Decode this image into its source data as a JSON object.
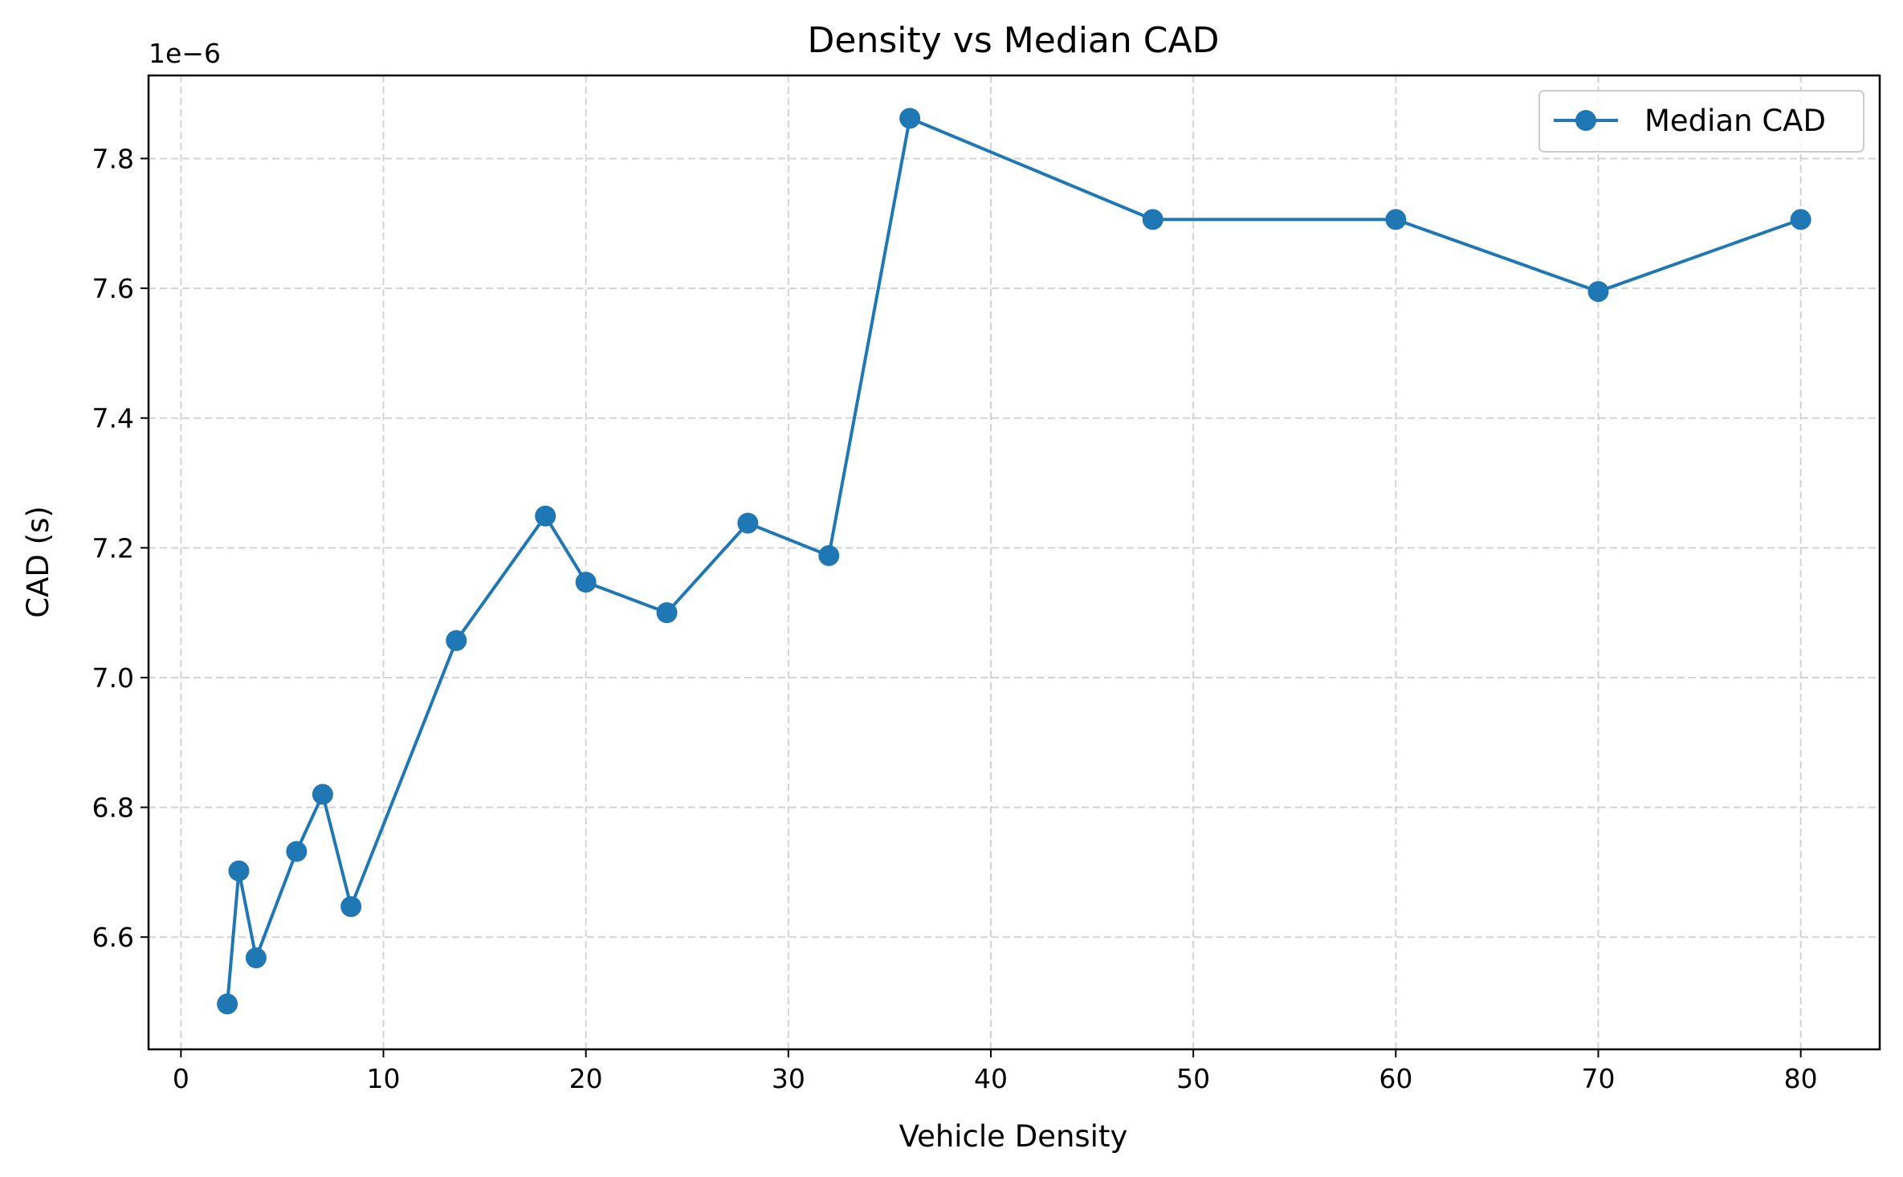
{
  "chart_data": {
    "type": "line",
    "title": "Density vs Median CAD",
    "xlabel": "Vehicle Density",
    "ylabel": "CAD (s)",
    "y_offset_label": "1e−6",
    "xlim": [
      -1.6,
      83.9
    ],
    "ylim": [
      6.427,
      7.928
    ],
    "x_ticks": [
      0,
      10,
      20,
      30,
      40,
      50,
      60,
      70,
      80
    ],
    "x_tick_labels": [
      "0",
      "10",
      "20",
      "30",
      "40",
      "50",
      "60",
      "70",
      "80"
    ],
    "y_ticks": [
      6.6,
      6.8,
      7.0,
      7.2,
      7.4,
      7.6,
      7.8
    ],
    "y_tick_labels": [
      "6.6",
      "6.8",
      "7.0",
      "7.2",
      "7.4",
      "7.6",
      "7.8"
    ],
    "grid": true,
    "legend": "top-right",
    "color": "#1f77b4",
    "series": [
      {
        "name": "Median CAD",
        "x": [
          2.29,
          2.86,
          3.71,
          5.71,
          7.0,
          8.4,
          13.6,
          18.0,
          20.0,
          24.0,
          28.0,
          32.0,
          36.0,
          48.0,
          60.0,
          70.0,
          80.0
        ],
        "y": [
          6.497,
          6.702,
          6.568,
          6.732,
          6.82,
          6.647,
          7.057,
          7.249,
          7.147,
          7.1,
          7.238,
          7.188,
          7.862,
          7.706,
          7.706,
          7.595,
          7.706
        ]
      }
    ]
  }
}
